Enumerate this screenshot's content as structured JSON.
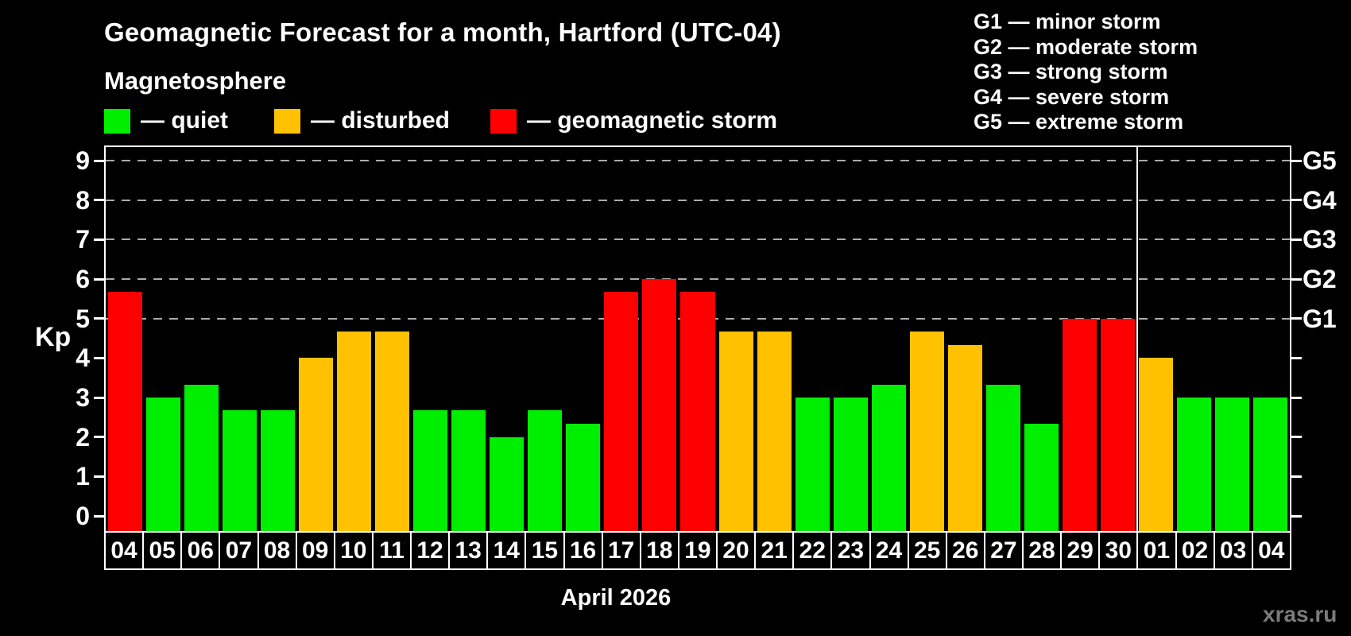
{
  "title": "Geomagnetic Forecast for a month, Hartford (UTC-04)",
  "subtitle": "Magnetosphere",
  "legend": {
    "items": [
      {
        "status": "quiet",
        "label": "— quiet",
        "color": "#00ee00"
      },
      {
        "status": "disturbed",
        "label": "— disturbed",
        "color": "#ffc100"
      },
      {
        "status": "storm",
        "label": "— geomagnetic storm",
        "color": "#ff0000"
      }
    ]
  },
  "storm_scale": [
    {
      "code": "G1",
      "line": "G1 — minor storm",
      "kp": 5
    },
    {
      "code": "G2",
      "line": "G2 — moderate storm",
      "kp": 6
    },
    {
      "code": "G3",
      "line": "G3 — strong storm",
      "kp": 7
    },
    {
      "code": "G4",
      "line": "G4 — severe storm",
      "kp": 8
    },
    {
      "code": "G5",
      "line": "G5 — extreme storm",
      "kp": 9
    }
  ],
  "y_axis": {
    "label": "Kp",
    "ticks": [
      0,
      1,
      2,
      3,
      4,
      5,
      6,
      7,
      8,
      9
    ]
  },
  "x_axis_label": "April 2026",
  "watermark": "xras.ru",
  "colors": {
    "background": "#000000",
    "quiet": "#00ee00",
    "disturbed": "#ffc100",
    "storm": "#ff0000",
    "grid": "#aaaaaa",
    "axis": "#ffffff"
  },
  "chart_data": {
    "type": "bar",
    "title": "Geomagnetic Forecast for a month, Hartford (UTC-04)",
    "xlabel": "April 2026",
    "ylabel": "Kp",
    "ylim": [
      0,
      9
    ],
    "grid": "dashed horizontal at Kp 5-9 (G1-G5)",
    "legend_position": "top",
    "gridlines_kp": [
      5,
      6,
      7,
      8,
      9
    ],
    "month_boundary_after_index": 26,
    "days": [
      {
        "date": "04",
        "kp": 5.67,
        "status": "storm"
      },
      {
        "date": "05",
        "kp": 3.0,
        "status": "quiet"
      },
      {
        "date": "06",
        "kp": 3.33,
        "status": "quiet"
      },
      {
        "date": "07",
        "kp": 2.67,
        "status": "quiet"
      },
      {
        "date": "08",
        "kp": 2.67,
        "status": "quiet"
      },
      {
        "date": "09",
        "kp": 4.0,
        "status": "disturbed"
      },
      {
        "date": "10",
        "kp": 4.67,
        "status": "disturbed"
      },
      {
        "date": "11",
        "kp": 4.67,
        "status": "disturbed"
      },
      {
        "date": "12",
        "kp": 2.67,
        "status": "quiet"
      },
      {
        "date": "13",
        "kp": 2.67,
        "status": "quiet"
      },
      {
        "date": "14",
        "kp": 2.0,
        "status": "quiet"
      },
      {
        "date": "15",
        "kp": 2.67,
        "status": "quiet"
      },
      {
        "date": "16",
        "kp": 2.33,
        "status": "quiet"
      },
      {
        "date": "17",
        "kp": 5.67,
        "status": "storm"
      },
      {
        "date": "18",
        "kp": 6.0,
        "status": "storm"
      },
      {
        "date": "19",
        "kp": 5.67,
        "status": "storm"
      },
      {
        "date": "20",
        "kp": 4.67,
        "status": "disturbed"
      },
      {
        "date": "21",
        "kp": 4.67,
        "status": "disturbed"
      },
      {
        "date": "22",
        "kp": 3.0,
        "status": "quiet"
      },
      {
        "date": "23",
        "kp": 3.0,
        "status": "quiet"
      },
      {
        "date": "24",
        "kp": 3.33,
        "status": "quiet"
      },
      {
        "date": "25",
        "kp": 4.67,
        "status": "disturbed"
      },
      {
        "date": "26",
        "kp": 4.33,
        "status": "disturbed"
      },
      {
        "date": "27",
        "kp": 3.33,
        "status": "quiet"
      },
      {
        "date": "28",
        "kp": 2.33,
        "status": "quiet"
      },
      {
        "date": "29",
        "kp": 5.0,
        "status": "storm"
      },
      {
        "date": "30",
        "kp": 5.0,
        "status": "storm"
      },
      {
        "date": "01",
        "kp": 4.0,
        "status": "disturbed"
      },
      {
        "date": "02",
        "kp": 3.0,
        "status": "quiet"
      },
      {
        "date": "03",
        "kp": 3.0,
        "status": "quiet"
      },
      {
        "date": "04",
        "kp": 3.0,
        "status": "quiet"
      }
    ]
  }
}
